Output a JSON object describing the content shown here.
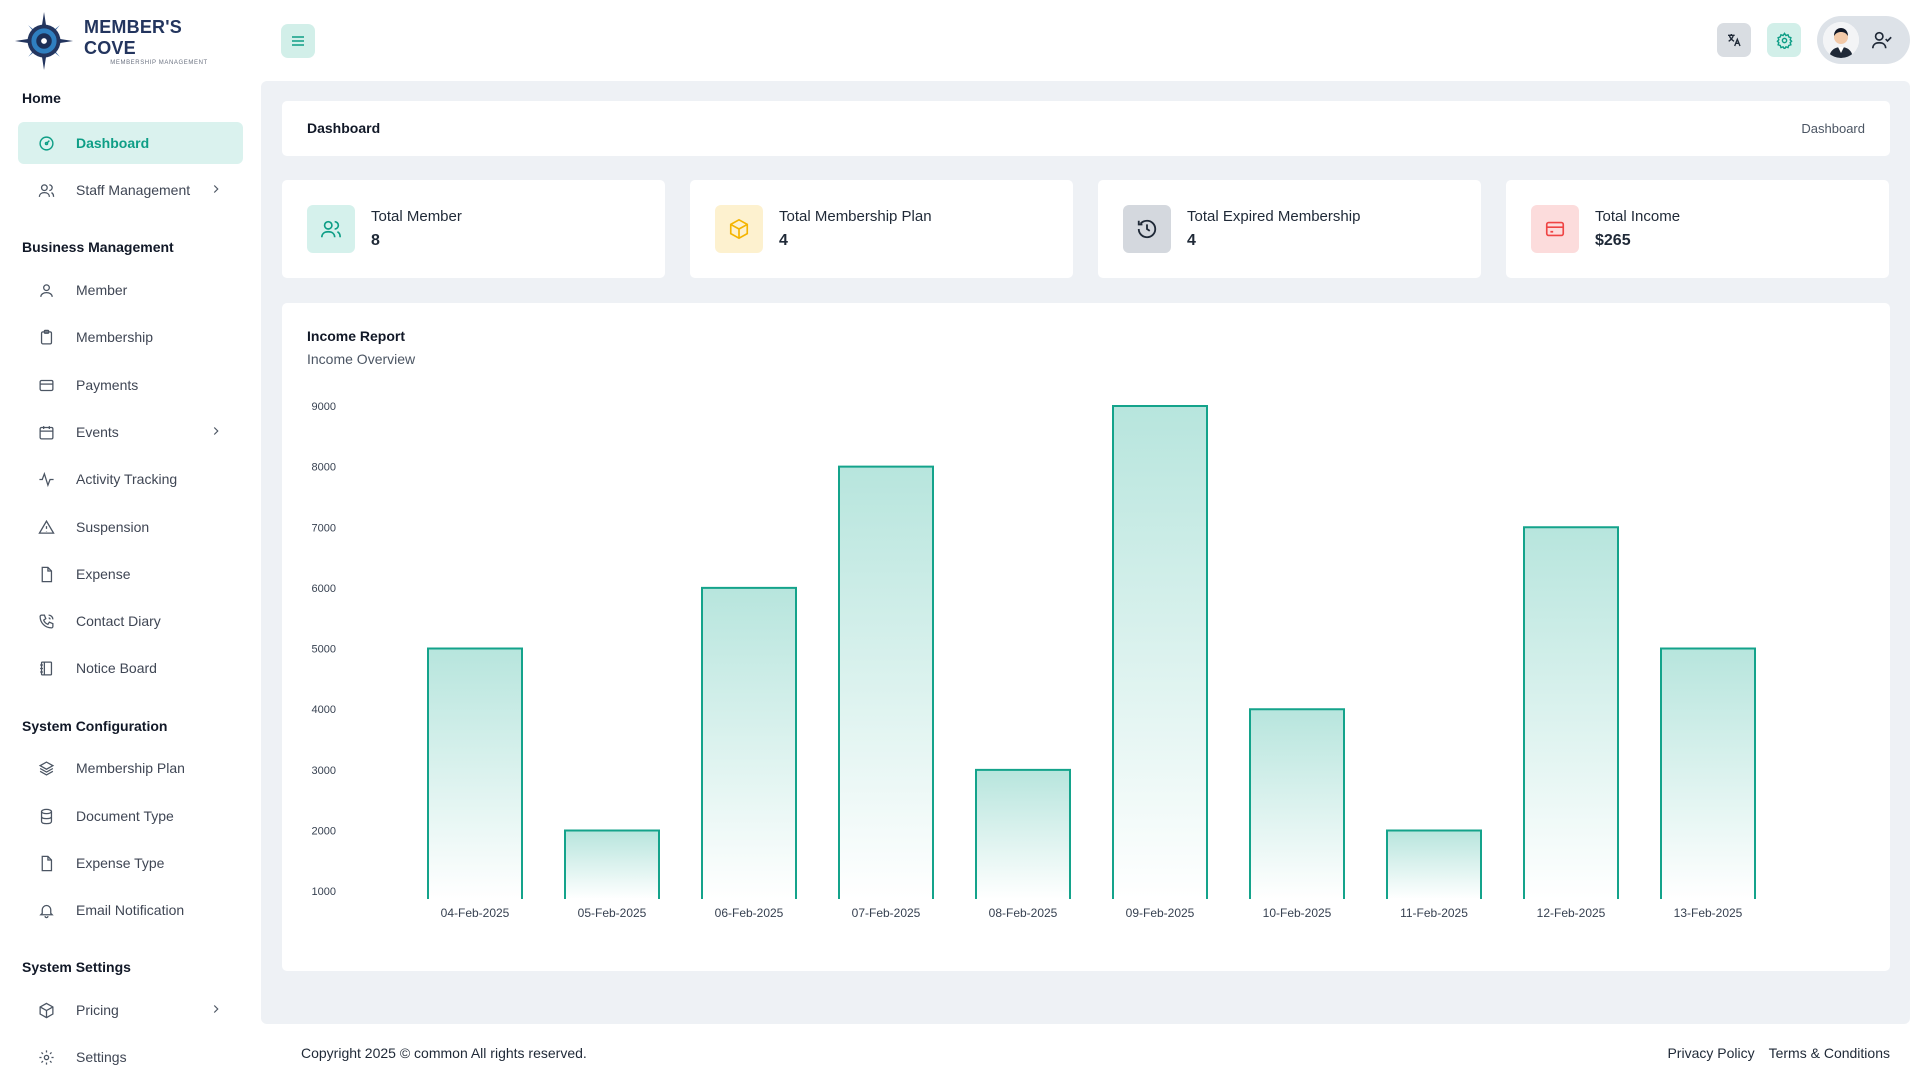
{
  "brand": {
    "title": "MEMBER'S COVE",
    "subtitle": "MEMBERSHIP MANAGEMENT"
  },
  "sidebar": {
    "sections": [
      {
        "title": "Home"
      },
      {
        "title": "Business Management"
      },
      {
        "title": "System Configuration"
      },
      {
        "title": "System Settings"
      }
    ],
    "items": [
      {
        "label": "Dashboard",
        "icon": "dashboard-icon",
        "active": true
      },
      {
        "label": "Staff Management",
        "icon": "users-icon",
        "has_submenu": true
      },
      {
        "label": "Member",
        "icon": "user-icon"
      },
      {
        "label": "Membership",
        "icon": "clipboard-icon"
      },
      {
        "label": "Payments",
        "icon": "credit-card-icon"
      },
      {
        "label": "Events",
        "icon": "calendar-icon",
        "has_submenu": true
      },
      {
        "label": "Activity Tracking",
        "icon": "activity-icon"
      },
      {
        "label": "Suspension",
        "icon": "warning-icon"
      },
      {
        "label": "Expense",
        "icon": "file-icon"
      },
      {
        "label": "Contact Diary",
        "icon": "phone-icon"
      },
      {
        "label": "Notice Board",
        "icon": "notebook-icon"
      },
      {
        "label": "Membership Plan",
        "icon": "layers-icon"
      },
      {
        "label": "Document Type",
        "icon": "database-icon"
      },
      {
        "label": "Expense Type",
        "icon": "file-icon"
      },
      {
        "label": "Email Notification",
        "icon": "bell-icon"
      },
      {
        "label": "Pricing",
        "icon": "package-icon",
        "has_submenu": true
      },
      {
        "label": "Settings",
        "icon": "gear-icon"
      }
    ]
  },
  "header": {
    "menu_icon": "hamburger-icon",
    "language_icon": "translate-icon",
    "settings_icon": "gear-icon",
    "profile_icon": "user-check-icon"
  },
  "breadcrumb": {
    "title": "Dashboard",
    "trail": "Dashboard"
  },
  "stats": [
    {
      "label": "Total Member",
      "value": "8",
      "icon": "users-icon",
      "bg": "#d5f1ec",
      "fg": "#0e9e86"
    },
    {
      "label": "Total Membership Plan",
      "value": "4",
      "icon": "package-icon",
      "bg": "#fdf1cf",
      "fg": "#f4b400"
    },
    {
      "label": "Total Expired Membership",
      "value": "4",
      "icon": "history-icon",
      "bg": "#d4d8de",
      "fg": "#1f2937"
    },
    {
      "label": "Total Income",
      "value": "$265",
      "icon": "credit-card-icon",
      "bg": "#fcdcdc",
      "fg": "#ef4444"
    }
  ],
  "chart_card": {
    "title": "Income Report",
    "subtitle": "Income Overview"
  },
  "chart_data": {
    "type": "bar",
    "categories": [
      "04-Feb-2025",
      "05-Feb-2025",
      "06-Feb-2025",
      "07-Feb-2025",
      "08-Feb-2025",
      "09-Feb-2025",
      "10-Feb-2025",
      "11-Feb-2025",
      "12-Feb-2025",
      "13-Feb-2025"
    ],
    "values": [
      5000,
      2000,
      6000,
      8000,
      3000,
      9000,
      4000,
      2000,
      7000,
      5000
    ],
    "yticks": [
      "1000",
      "2000",
      "3000",
      "4000",
      "5000",
      "6000",
      "7000",
      "8000",
      "9000"
    ],
    "ylim": [
      870,
      9000
    ],
    "title": "",
    "xlabel": "",
    "ylabel": "",
    "bar_color": "#14a38b",
    "grid": false
  },
  "footer": {
    "copyright": "Copyright 2025 © common All rights reserved.",
    "links": [
      "Privacy Policy",
      "Terms & Conditions"
    ]
  }
}
